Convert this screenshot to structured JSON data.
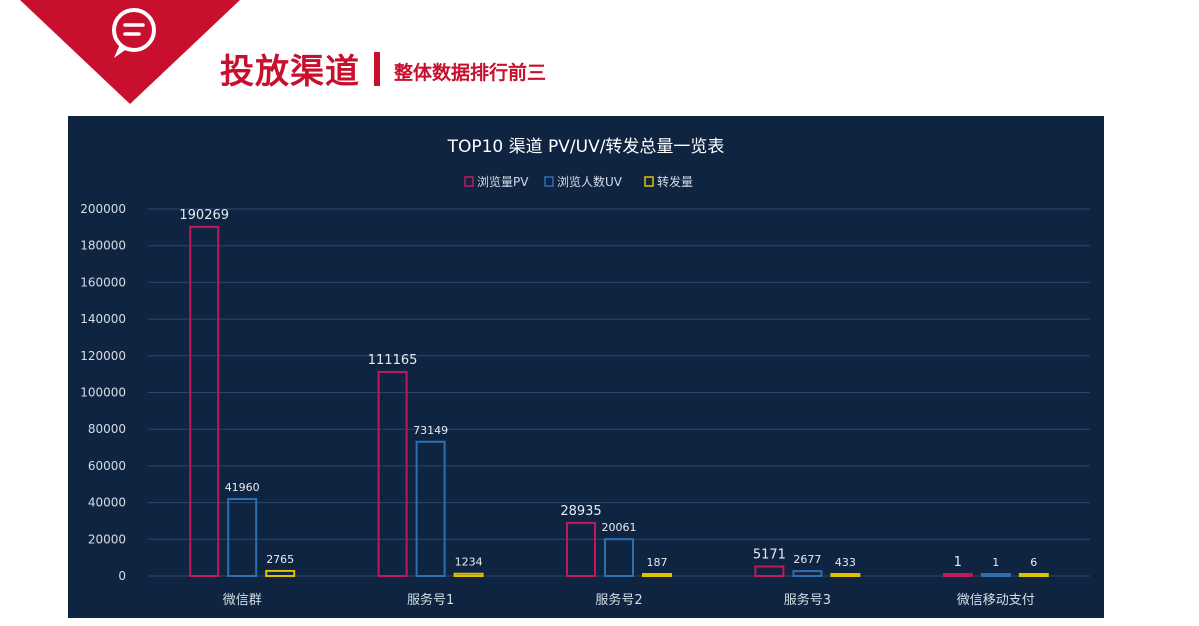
{
  "header": {
    "title": "投放渠道",
    "subtitle": "整体数据排行前三",
    "icon": "speech-bubble-icon",
    "accent_color": "#c8102e"
  },
  "chart_data": {
    "type": "bar",
    "title": "TOP10 渠道 PV/UV/转发总量一览表",
    "categories": [
      "微信群",
      "服务号1",
      "服务号2",
      "服务号3",
      "微信移动支付"
    ],
    "series": [
      {
        "name": "浏览量PV",
        "color": "#c2185b",
        "values": [
          190269,
          111165,
          28935,
          5171,
          1
        ]
      },
      {
        "name": "浏览人数UV",
        "color": "#2f6fb0",
        "values": [
          41960,
          73149,
          20061,
          2677,
          1
        ]
      },
      {
        "name": "转发量",
        "color": "#e0c000",
        "values": [
          2765,
          1234,
          187,
          433,
          6
        ]
      }
    ],
    "ylim": [
      0,
      200000
    ],
    "yticks": [
      0,
      20000,
      40000,
      60000,
      80000,
      100000,
      120000,
      140000,
      160000,
      180000,
      200000
    ],
    "legend_position": "top-center",
    "grid": true,
    "background": "#0f2440"
  }
}
